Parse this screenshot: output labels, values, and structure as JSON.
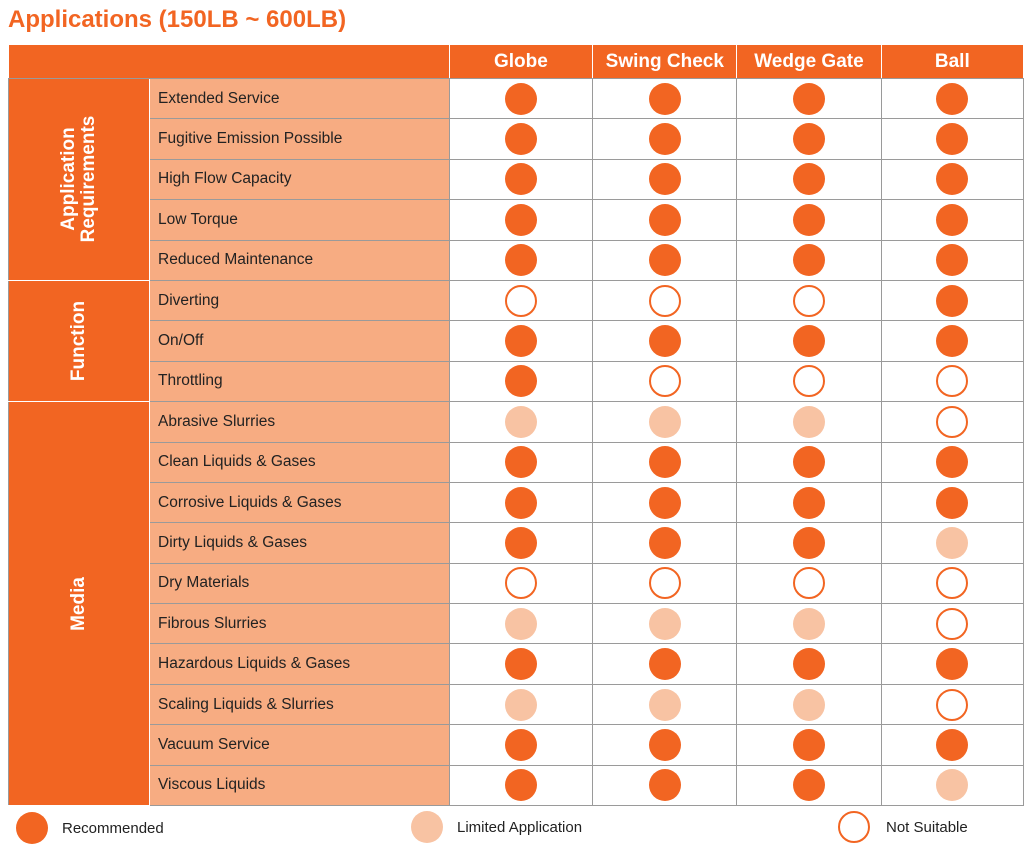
{
  "title": "Applications (150LB ~ 600LB)",
  "columns": [
    "Globe",
    "Swing Check",
    "Wedge Gate",
    "Ball"
  ],
  "colors": {
    "recommended": "#f26522",
    "limited": "#f8c3a3",
    "not_suitable": "#ffffff"
  },
  "groups": [
    {
      "name": "Application Requirements",
      "rows": [
        {
          "label": "Extended Service",
          "values": [
            "R",
            "R",
            "R",
            "R"
          ]
        },
        {
          "label": "Fugitive Emission Possible",
          "values": [
            "R",
            "R",
            "R",
            "R"
          ]
        },
        {
          "label": "High Flow Capacity",
          "values": [
            "R",
            "R",
            "R",
            "R"
          ]
        },
        {
          "label": "Low Torque",
          "values": [
            "R",
            "R",
            "R",
            "R"
          ]
        },
        {
          "label": "Reduced Maintenance",
          "values": [
            "R",
            "R",
            "R",
            "R"
          ]
        }
      ]
    },
    {
      "name": "Function",
      "rows": [
        {
          "label": "Diverting",
          "values": [
            "N",
            "N",
            "N",
            "R"
          ]
        },
        {
          "label": "On/Off",
          "values": [
            "R",
            "R",
            "R",
            "R"
          ]
        },
        {
          "label": "Throttling",
          "values": [
            "R",
            "N",
            "N",
            "N"
          ]
        }
      ]
    },
    {
      "name": "Media",
      "rows": [
        {
          "label": "Abrasive Slurries",
          "values": [
            "L",
            "L",
            "L",
            "N"
          ]
        },
        {
          "label": "Clean Liquids & Gases",
          "values": [
            "R",
            "R",
            "R",
            "R"
          ]
        },
        {
          "label": "Corrosive Liquids & Gases",
          "values": [
            "R",
            "R",
            "R",
            "R"
          ]
        },
        {
          "label": "Dirty Liquids & Gases",
          "values": [
            "R",
            "R",
            "R",
            "L"
          ]
        },
        {
          "label": "Dry Materials",
          "values": [
            "N",
            "N",
            "N",
            "N"
          ]
        },
        {
          "label": "Fibrous Slurries",
          "values": [
            "L",
            "L",
            "L",
            "N"
          ]
        },
        {
          "label": "Hazardous Liquids & Gases",
          "values": [
            "R",
            "R",
            "R",
            "R"
          ]
        },
        {
          "label": "Scaling Liquids & Slurries",
          "values": [
            "L",
            "L",
            "L",
            "N"
          ]
        },
        {
          "label": "Vacuum Service",
          "values": [
            "R",
            "R",
            "R",
            "R"
          ]
        },
        {
          "label": "Viscous Liquids",
          "values": [
            "R",
            "R",
            "R",
            "L"
          ]
        }
      ]
    }
  ],
  "legend": {
    "R": "Recommended",
    "L": "Limited Application",
    "N": "Not Suitable"
  }
}
